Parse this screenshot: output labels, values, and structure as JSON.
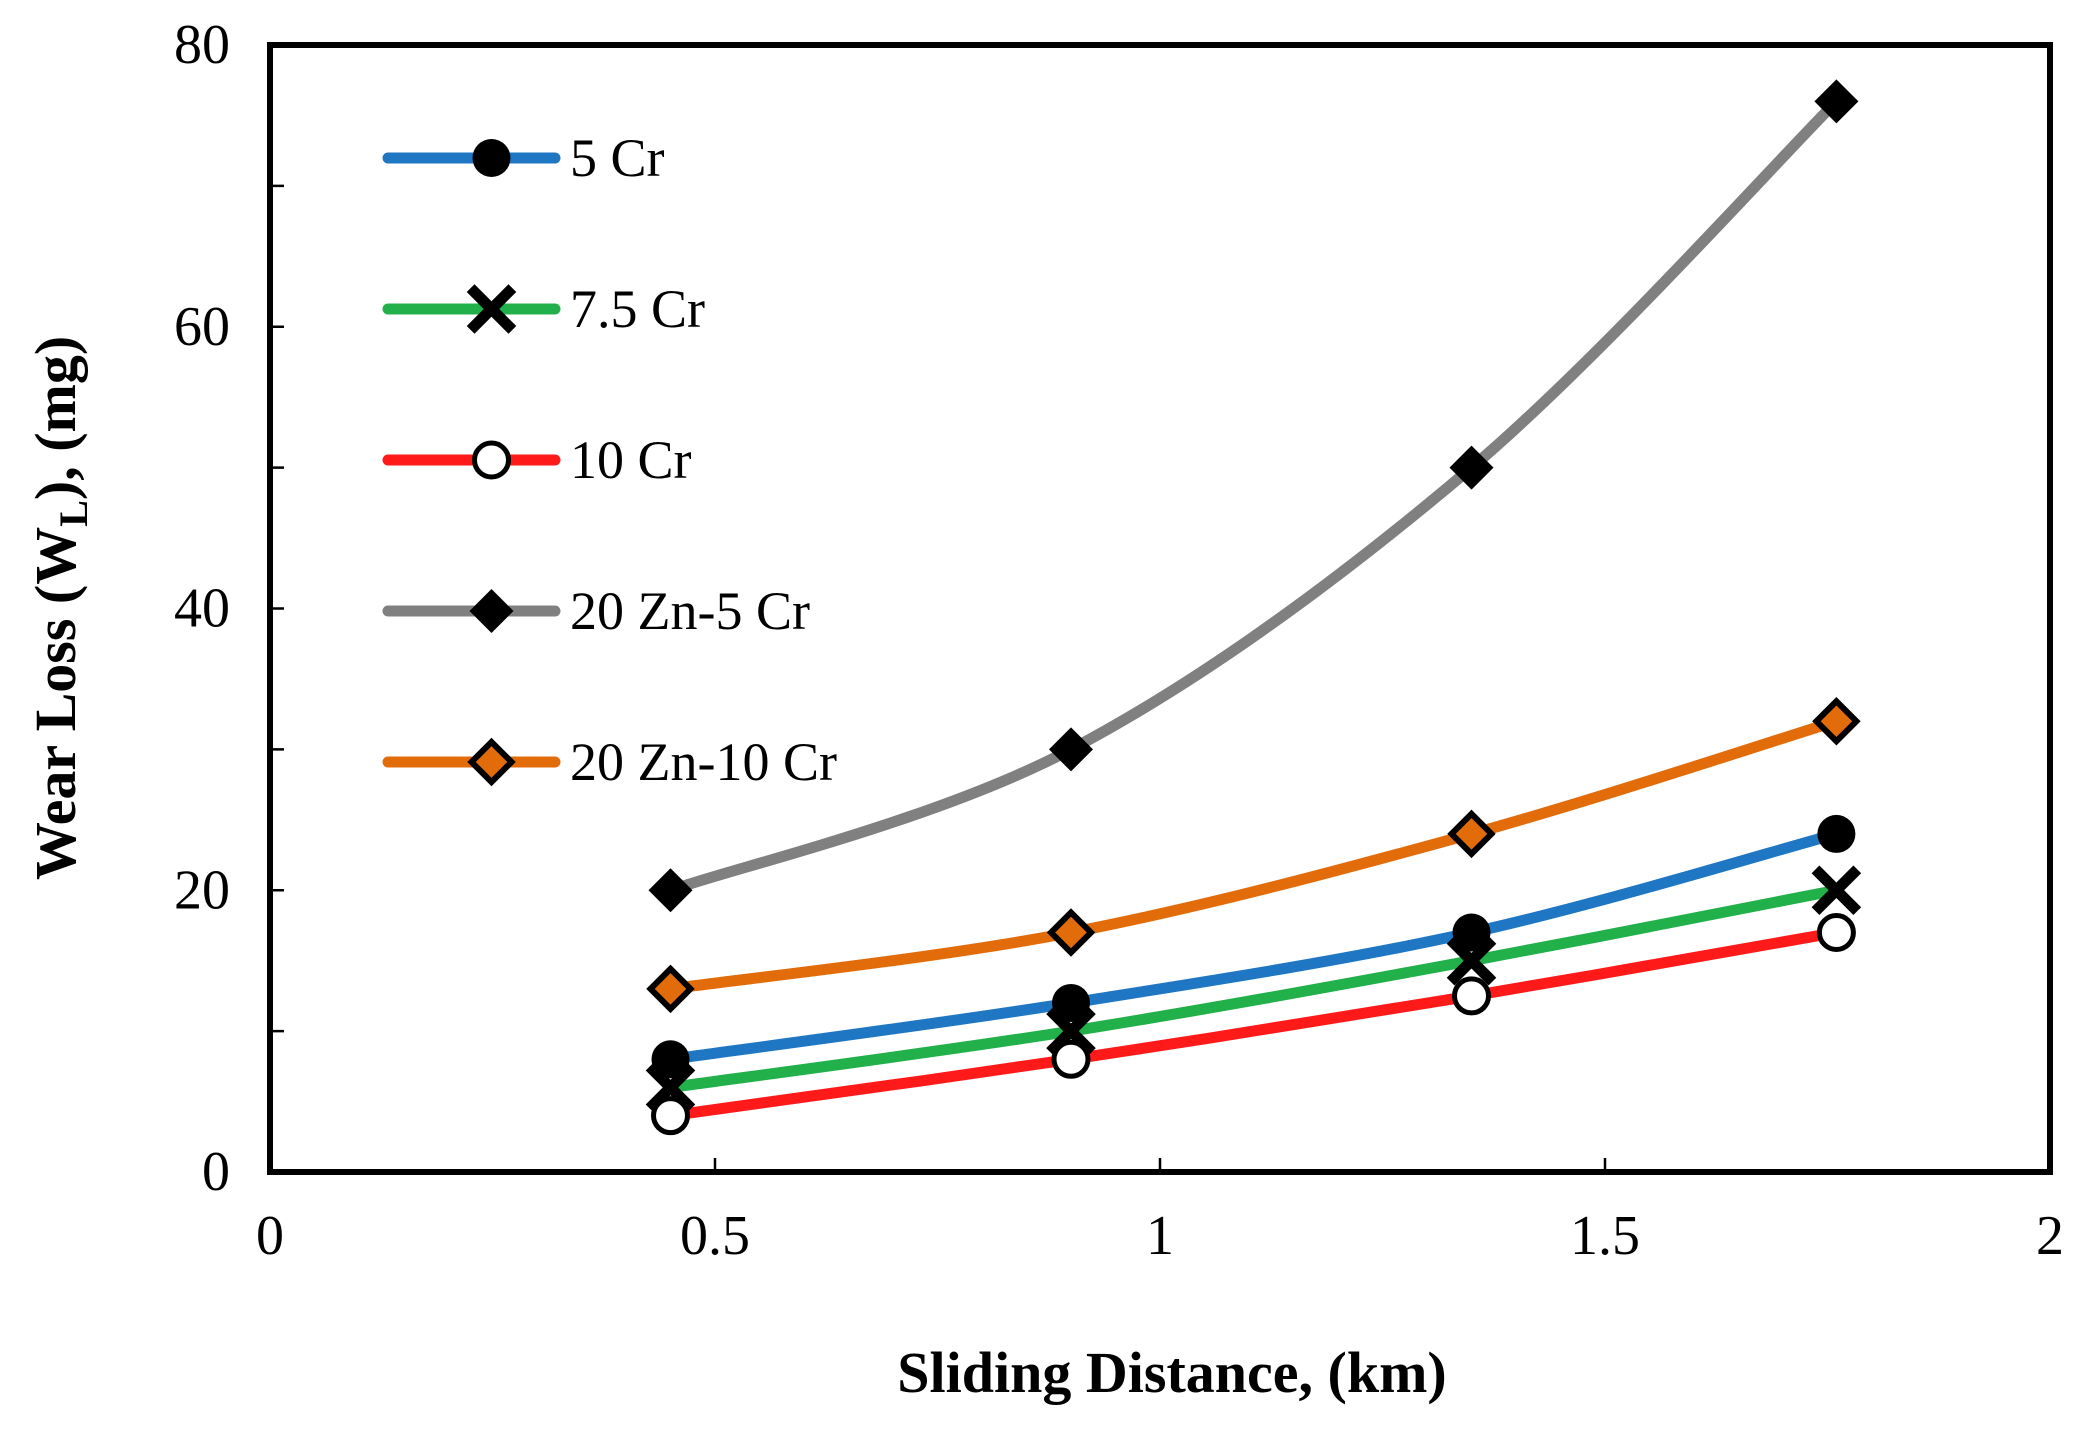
{
  "chart_data": {
    "type": "line",
    "xlabel": "Sliding Distance, (km)",
    "ylabel": {
      "prefix": "Wear Loss (W",
      "subscript": "L",
      "suffix": "), (mg)"
    },
    "xlim": [
      0,
      2
    ],
    "ylim": [
      0,
      80
    ],
    "xticks": [
      0,
      0.5,
      1,
      1.5,
      2
    ],
    "xtick_labels": [
      "0",
      "0.5",
      "1",
      "1.5",
      "2"
    ],
    "yticks": [
      0,
      20,
      40,
      60,
      80
    ],
    "ytick_labels": [
      "0",
      "20",
      "40",
      "60",
      "80"
    ],
    "yminor_ticks": [
      10,
      30,
      50,
      70
    ],
    "grid": false,
    "legend_position": "top-left",
    "x": [
      0.45,
      0.9,
      1.35,
      1.76
    ],
    "series": [
      {
        "name": "5 Cr",
        "values": [
          8,
          12,
          17,
          24
        ],
        "color": "#1f77c4",
        "marker": "filled-circle"
      },
      {
        "name": "7.5 Cr",
        "values": [
          6,
          10,
          15,
          20
        ],
        "color": "#22b04b",
        "marker": "cross"
      },
      {
        "name": "10 Cr",
        "values": [
          4,
          8,
          12.5,
          17
        ],
        "color": "#ff1a1a",
        "marker": "open-circle"
      },
      {
        "name": "20 Zn-5 Cr",
        "values": [
          20,
          30,
          50,
          76
        ],
        "color": "#808080",
        "marker": "filled-diamond"
      },
      {
        "name": "20 Zn-10 Cr",
        "values": [
          13,
          17,
          24,
          32
        ],
        "color": "#e36c0a",
        "marker": "open-diamond"
      }
    ]
  }
}
